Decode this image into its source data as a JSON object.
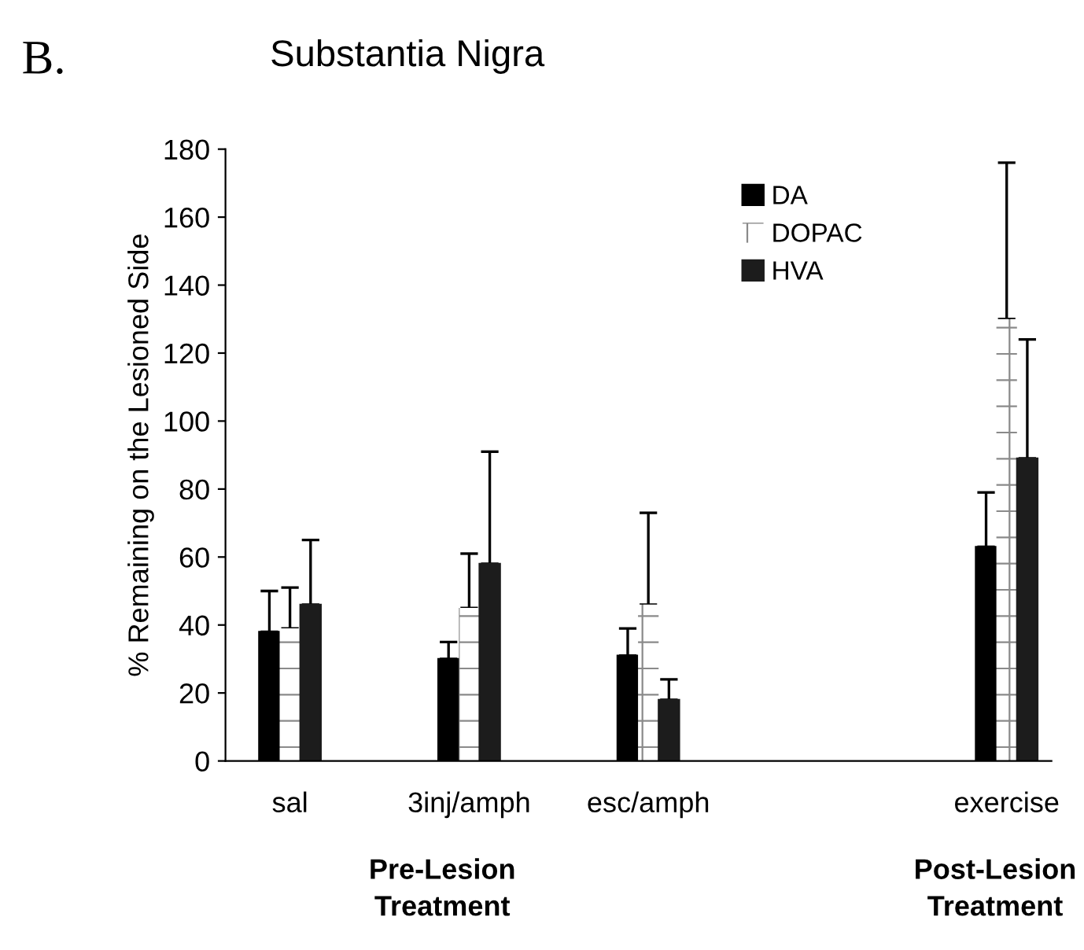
{
  "chart_data": {
    "type": "bar",
    "title": "Substantia Nigra",
    "ylabel": "% Remaining on the Lesioned Side",
    "categories": [
      "sal",
      "3inj/amph",
      "esc/amph",
      null,
      "exercise"
    ],
    "series": [
      {
        "name": "DA",
        "color": "#000000",
        "values": [
          38,
          30,
          31,
          null,
          63
        ],
        "errors": [
          [
            38,
            50
          ],
          [
            30,
            35
          ],
          [
            31,
            39
          ],
          null,
          [
            63,
            79
          ]
        ]
      },
      {
        "name": "DOPAC",
        "color": "#ffffff",
        "values": [
          39,
          45,
          46,
          null,
          130
        ],
        "errors": [
          [
            39,
            51
          ],
          [
            45,
            61
          ],
          [
            46,
            73
          ],
          null,
          [
            130,
            176
          ]
        ]
      },
      {
        "name": "HVA",
        "color": "#1c1c1c",
        "values": [
          46,
          58,
          18,
          null,
          89
        ],
        "errors": [
          [
            46,
            65
          ],
          [
            58,
            91
          ],
          [
            18,
            24
          ],
          null,
          [
            89,
            124
          ]
        ]
      }
    ],
    "ylim": [
      0,
      180
    ],
    "yticks": [
      0,
      20,
      40,
      60,
      80,
      100,
      120,
      140,
      160,
      180
    ],
    "grid": false,
    "legend": "top right",
    "annotations": [
      "B.",
      "Pre-Lesion\nTreatment",
      "Post-Lesion\nTreatment"
    ]
  }
}
